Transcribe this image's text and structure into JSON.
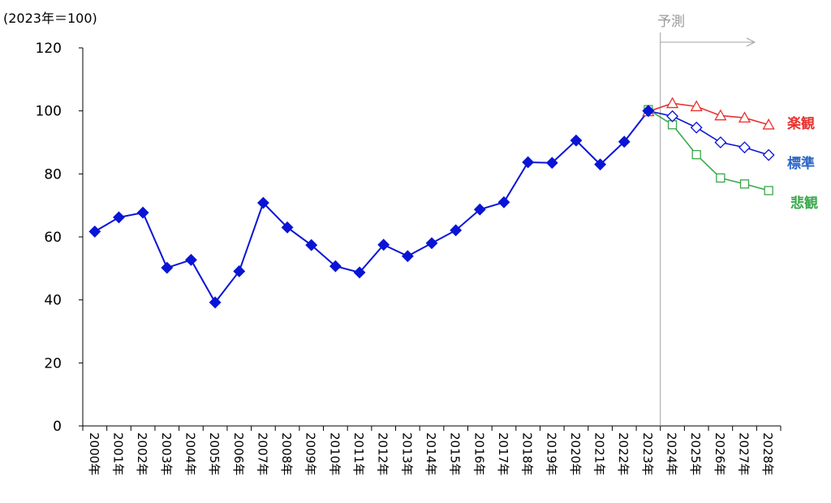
{
  "chart_data": {
    "type": "line",
    "unit_label": "(2023年＝100)",
    "forecast_label": "予測",
    "forecast_start": "2023年",
    "ylim": [
      0,
      120
    ],
    "yticks": [
      0,
      20,
      40,
      60,
      80,
      100,
      120
    ],
    "grid": false,
    "categories": [
      "2000年",
      "2001年",
      "2002年",
      "2003年",
      "2004年",
      "2005年",
      "2006年",
      "2007年",
      "2008年",
      "2009年",
      "2010年",
      "2011年",
      "2012年",
      "2013年",
      "2014年",
      "2015年",
      "2016年",
      "2017年",
      "2018年",
      "2019年",
      "2020年",
      "2021年",
      "2022年",
      "2023年",
      "2024年",
      "2025年",
      "2026年",
      "2027年",
      "2028年"
    ],
    "actual": {
      "color": "#0a14d6",
      "x": [
        "2000年",
        "2001年",
        "2002年",
        "2003年",
        "2004年",
        "2005年",
        "2006年",
        "2007年",
        "2008年",
        "2009年",
        "2010年",
        "2011年",
        "2012年",
        "2013年",
        "2014年",
        "2015年",
        "2016年",
        "2017年",
        "2018年",
        "2019年",
        "2020年",
        "2021年",
        "2022年",
        "2023年"
      ],
      "values": [
        61.7,
        66.2,
        67.7,
        50.2,
        52.7,
        39.2,
        49.1,
        70.8,
        63.0,
        57.4,
        50.7,
        48.7,
        57.5,
        53.9,
        58.0,
        62.1,
        68.7,
        71.0,
        83.7,
        83.5,
        90.6,
        83.0,
        90.2,
        100.0
      ]
    },
    "series": [
      {
        "name": "楽観",
        "color": "#e8322f",
        "marker": "triangle",
        "x": [
          "2023年",
          "2024年",
          "2025年",
          "2026年",
          "2027年",
          "2028年"
        ],
        "values": [
          99.8,
          102.4,
          101.4,
          98.5,
          97.8,
          95.6
        ]
      },
      {
        "name": "標準",
        "color": "#0a14d6",
        "marker": "diamond",
        "x": [
          "2023年",
          "2024年",
          "2025年",
          "2026年",
          "2027年",
          "2028年"
        ],
        "values": [
          100.0,
          98.3,
          94.7,
          90.0,
          88.4,
          86.0
        ]
      },
      {
        "name": "悲観",
        "color": "#3aa84a",
        "marker": "square",
        "x": [
          "2023年",
          "2024年",
          "2025年",
          "2026年",
          "2027年",
          "2028年"
        ],
        "values": [
          100.4,
          95.6,
          86.1,
          78.7,
          76.8,
          74.7
        ]
      }
    ],
    "legend_placement": "right",
    "legend": {
      "optimistic": {
        "label": "楽観",
        "color": "#e8322f"
      },
      "standard": {
        "label": "標準",
        "color": "#2b67c7"
      },
      "pessimistic": {
        "label": "悲観",
        "color": "#3aa84a"
      }
    }
  }
}
